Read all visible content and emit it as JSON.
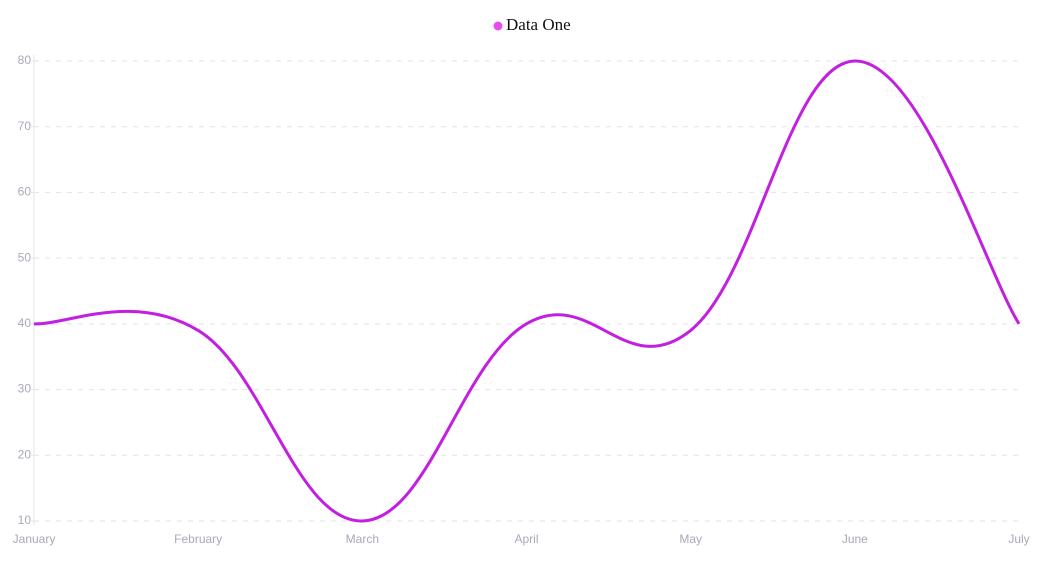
{
  "chart_data": {
    "type": "line",
    "categories": [
      "January",
      "February",
      "March",
      "April",
      "May",
      "June",
      "July"
    ],
    "series": [
      {
        "name": "Data One",
        "color": "#c21fe0",
        "values": [
          40,
          39,
          10,
          40,
          39,
          80,
          40
        ]
      }
    ],
    "ylim": [
      10,
      80
    ],
    "yticks": [
      10,
      20,
      30,
      40,
      50,
      60,
      70,
      80
    ],
    "grid": true,
    "legend": "top"
  }
}
